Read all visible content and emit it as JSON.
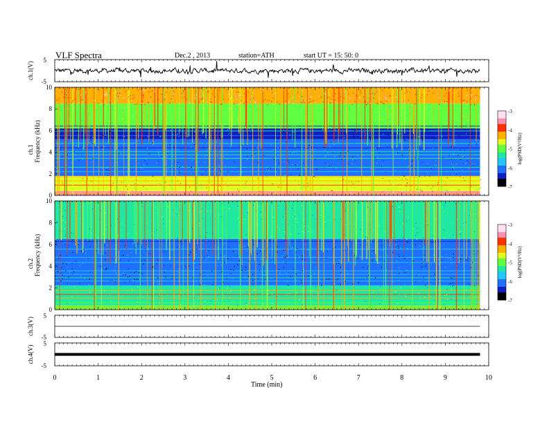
{
  "header": {
    "title": "VLF  Spectra",
    "date": "Dec.2  , 2013",
    "station": "station=ATH",
    "start_ut": "start  UT  =    15: 50: 0"
  },
  "chart_data": [
    {
      "type": "line",
      "name": "ch1-waveform",
      "ylabel": "ch.1(V)",
      "ylim": [
        -5,
        5
      ],
      "yticks": [
        "5",
        "-5"
      ],
      "xlim": [
        0,
        10
      ],
      "description_level": 0,
      "line_color": "#000000"
    },
    {
      "type": "heatmap",
      "name": "ch1-spectrogram",
      "ylabel": "Frequency  (kHz)",
      "channel_label": "ch.1",
      "ylim": [
        0,
        10
      ],
      "yticks": [
        "0",
        "2",
        "4",
        "6",
        "8",
        "10"
      ],
      "xlim": [
        0,
        9.8
      ],
      "colorbar": {
        "label": "log(PSD(V²/Hz)",
        "range": [
          -7,
          -3
        ],
        "ticks": [
          "-3",
          "-4",
          "-5",
          "-6",
          "-7"
        ],
        "colors": [
          "#000000",
          "#1020c0",
          "#2070ff",
          "#20c8ff",
          "#20e8a0",
          "#60ff40",
          "#e0ff20",
          "#ffb000",
          "#ff3000",
          "#ff90b0",
          "#ffe0f0"
        ]
      },
      "bands_khz": [
        {
          "from": 0,
          "to": 0.4,
          "level": -3.6
        },
        {
          "from": 0.4,
          "to": 1.8,
          "level": -4.6
        },
        {
          "from": 1.8,
          "to": 5.2,
          "level": -6.0
        },
        {
          "from": 5.2,
          "to": 6.2,
          "level": -6.4
        },
        {
          "from": 6.2,
          "to": 8.5,
          "level": -5.0
        },
        {
          "from": 8.5,
          "to": 10,
          "level": -4.4
        }
      ],
      "notes": "sferics visible as vertical streaks across all frequencies; level change near 4.6 min"
    },
    {
      "type": "heatmap",
      "name": "ch2-spectrogram",
      "ylabel": "Frequency  (kHz)",
      "channel_label": "ch.2",
      "ylim": [
        0,
        10
      ],
      "yticks": [
        "0",
        "2",
        "4",
        "6",
        "8",
        "10"
      ],
      "xlim": [
        0,
        9.8
      ],
      "colorbar": {
        "label": "log(PSD(V²/Hz)",
        "range": [
          -7,
          -3
        ],
        "ticks": [
          "-3",
          "-4",
          "-5",
          "-6",
          "-7"
        ],
        "colors": [
          "#000000",
          "#1020c0",
          "#2070ff",
          "#20c8ff",
          "#20e8a0",
          "#60ff40",
          "#e0ff20",
          "#ffb000",
          "#ff3000",
          "#ff90b0",
          "#ffe0f0"
        ]
      },
      "bands_khz": [
        {
          "from": 0,
          "to": 0.4,
          "level": -5.0
        },
        {
          "from": 0.4,
          "to": 2.2,
          "level": -5.2
        },
        {
          "from": 2.2,
          "to": 6.5,
          "level": -6.2
        },
        {
          "from": 6.5,
          "to": 10,
          "level": -5.4
        }
      ]
    },
    {
      "type": "line",
      "name": "ch3-waveform",
      "ylabel": "ch.3(V)",
      "ylim": [
        -5,
        5
      ],
      "yticks": [
        "5",
        "-5"
      ],
      "xlim": [
        0,
        10
      ],
      "level": 0
    },
    {
      "type": "line",
      "name": "ch4-waveform",
      "ylabel": "ch.4(V)",
      "ylim": [
        -5,
        5
      ],
      "yticks": [
        "5",
        "-5"
      ],
      "xlim": [
        0,
        10
      ],
      "level": 0
    }
  ],
  "xaxis": {
    "label": "Time  (min)",
    "ticks": [
      "0",
      "1",
      "2",
      "3",
      "4",
      "5",
      "6",
      "7",
      "8",
      "9",
      "10"
    ],
    "range": [
      0,
      10
    ]
  }
}
